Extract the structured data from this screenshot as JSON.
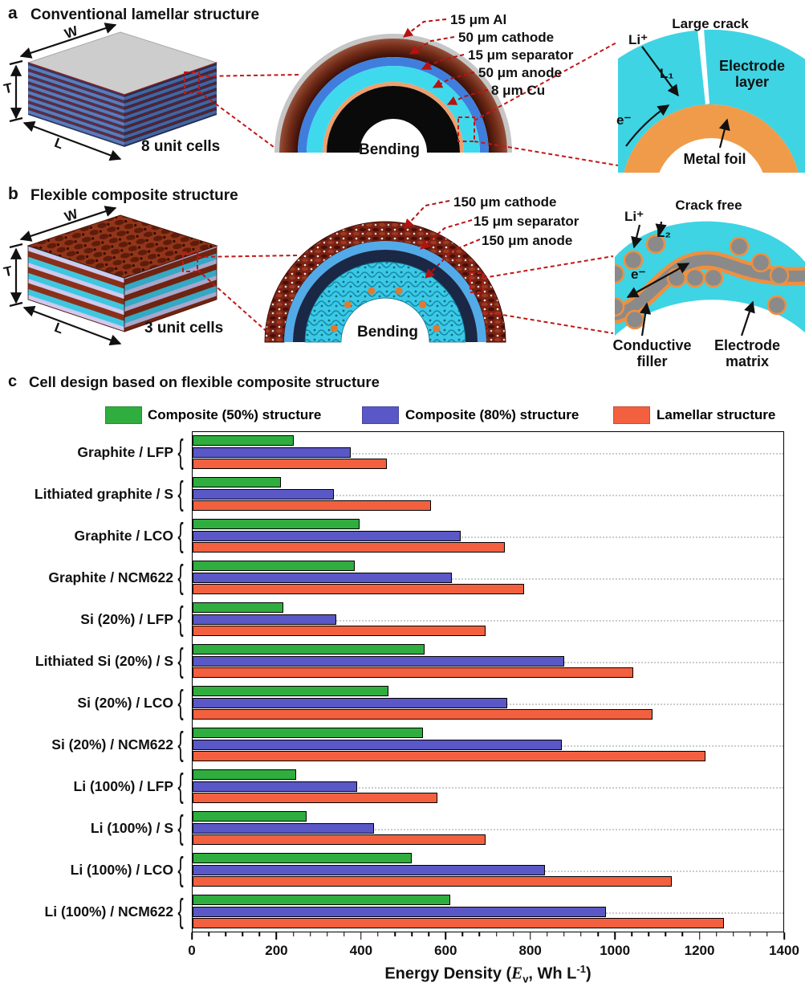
{
  "panels": {
    "a": {
      "letter": "a",
      "title": "Conventional lamellar structure",
      "dims": {
        "w": "W",
        "t": "T",
        "l": "L"
      },
      "unit_cells": "8 unit cells",
      "bending": "Bending",
      "layers": [
        "15 μm Al",
        "50 μm cathode",
        "15 μm separator",
        "50 μm anode",
        "8 μm Cu"
      ],
      "inset": {
        "title": "Large crack",
        "li_ion": "Li⁺",
        "path_length": "L₁",
        "electron": "e⁻",
        "region1": "Electrode layer",
        "region2": "Metal foil"
      }
    },
    "b": {
      "letter": "b",
      "title": "Flexible composite structure",
      "dims": {
        "w": "W",
        "t": "T",
        "l": "L"
      },
      "unit_cells": "3 unit cells",
      "bending": "Bending",
      "layers": [
        "150 μm cathode",
        "15 μm separator",
        "150 μm anode"
      ],
      "inset": {
        "title": "Crack free",
        "li_ion": "Li⁺",
        "path_length": "L₂",
        "electron": "e⁻",
        "region1": "Conductive filler",
        "region2": "Electrode matrix"
      }
    },
    "c": {
      "letter": "c",
      "title": "Cell design based on flexible composite structure"
    }
  },
  "chart_data": {
    "type": "bar",
    "orientation": "horizontal",
    "title": "Cell design based on flexible composite structure",
    "categories": [
      "Graphite / LFP",
      "Lithiated graphite / S",
      "Graphite / LCO",
      "Graphite / NCM622",
      "Si (20%) / LFP",
      "Lithiated Si (20%) / S",
      "Si (20%) / LCO",
      "Si (20%) / NCM622",
      "Li (100%) / LFP",
      "Li (100%) / S",
      "Li (100%) / LCO",
      "Li (100%) / NCM622"
    ],
    "series": [
      {
        "name": "Composite (50%) structure",
        "color": "#2FAD3F",
        "values": [
          240,
          210,
          395,
          385,
          215,
          550,
          465,
          545,
          245,
          270,
          520,
          610
        ]
      },
      {
        "name": "Composite (80%) structure",
        "color": "#5A57C6",
        "values": [
          375,
          335,
          635,
          615,
          340,
          880,
          745,
          875,
          390,
          430,
          835,
          980
        ]
      },
      {
        "name": "Lamellar structure",
        "color": "#F2603F",
        "values": [
          460,
          565,
          740,
          785,
          695,
          1045,
          1090,
          1215,
          580,
          695,
          1135,
          1260
        ]
      }
    ],
    "xlabel": "Energy Density (Ev, Wh L-1)",
    "xlabel_parts": {
      "prefix": "Energy Density (",
      "symbol": "E",
      "subscript": "v",
      "middle": ", Wh L",
      "superscript": "-1",
      "suffix": ")"
    },
    "xlim": [
      0,
      1400
    ],
    "xticks": [
      0,
      200,
      400,
      600,
      800,
      1000,
      1200,
      1400
    ],
    "major_tick_step": 200,
    "minor_tick_step": 40,
    "grid": "dotted horizontal at category centers",
    "legend_position": "top"
  }
}
